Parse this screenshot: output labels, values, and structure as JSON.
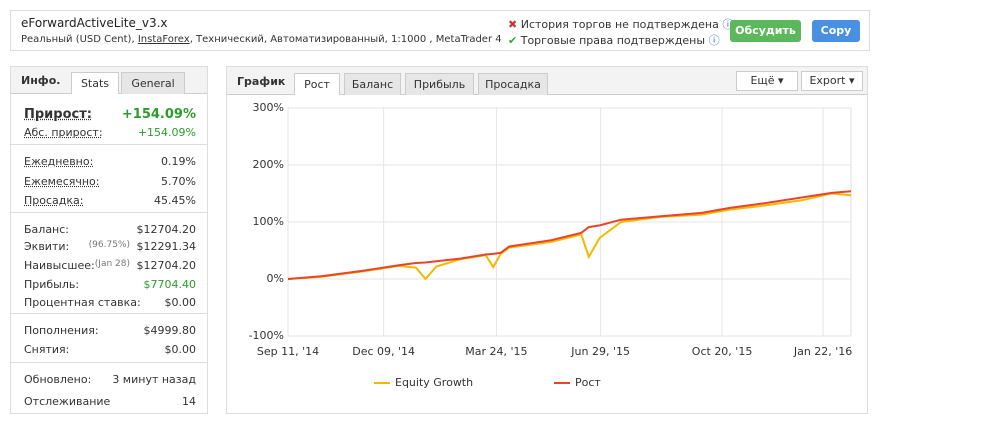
{
  "header": {
    "title": "eForwardActiveLite_v3.x",
    "account_type": "Реальный (USD Cent),",
    "broker": "InstaForex",
    "details": ", Технический, Автоматизированный, 1:1000 , MetaTrader 4"
  },
  "status": [
    "История торгов не подтверждена",
    "Торговые права подтверждены"
  ],
  "buttons": [
    "Обсудить",
    "Copy"
  ],
  "stats_panel": {
    "tabs": [
      "Инфо.",
      "Stats",
      "General"
    ],
    "groups": [
      [
        {
          "label": "Прирост:",
          "value": "+154.09%"
        },
        {
          "label": "Абс. прирост:",
          "value": "+154.09%"
        }
      ],
      [
        {
          "label": "Ежедневно:",
          "value": "0.19%"
        },
        {
          "label": "Ежемесячно:",
          "value": "5.70%"
        },
        {
          "label": "Просадка:",
          "value": "45.45%"
        }
      ],
      [
        {
          "label": "Баланс:",
          "value": "$12704.20"
        },
        {
          "label": "Эквити:",
          "note": "(96.75%)",
          "value": "$12291.34"
        },
        {
          "label": "Наивысшее:",
          "note": "(Jan 28)",
          "value": "$12704.20"
        },
        {
          "label": "Прибыль:",
          "value": "$7704.40"
        },
        {
          "label": "Процентная ставка:",
          "value": "$0.00"
        }
      ],
      [
        {
          "label": "Пополнения:",
          "value": "$4999.80"
        },
        {
          "label": "Снятия:",
          "value": "$0.00"
        }
      ],
      [
        {
          "label": "Обновлено:",
          "value": "3 минут назад"
        },
        {
          "label": "Отслеживание",
          "value": "14"
        }
      ]
    ]
  },
  "chart_panel": {
    "tabs": [
      "График",
      "Рост",
      "Баланс",
      "Прибыль",
      "Просадка"
    ],
    "buttons": [
      "Ещё",
      "Export"
    ]
  },
  "chart_data": {
    "type": "line",
    "x": [
      "2014-09-11",
      "2014-10-12",
      "2014-11-18",
      "2014-12-23",
      "2015-01-08",
      "2015-01-17",
      "2015-01-27",
      "2015-02-19",
      "2015-03-14",
      "2015-03-21",
      "2015-03-28",
      "2015-04-05",
      "2015-05-14",
      "2015-06-11",
      "2015-06-18",
      "2015-06-28",
      "2015-07-18",
      "2015-08-24",
      "2015-10-01",
      "2015-10-28",
      "2015-11-25",
      "2016-01-02",
      "2016-01-30",
      "2016-02-17"
    ],
    "series": [
      {
        "name": "Equity Growth",
        "color": "#f5b800",
        "values": [
          0,
          4,
          13,
          23,
          20,
          0,
          22,
          35,
          42,
          21,
          44,
          55,
          65,
          78,
          39,
          72,
          100,
          109,
          113,
          122,
          128,
          138,
          150,
          147
        ]
      },
      {
        "name": "Рост",
        "color": "#e8442c",
        "values": [
          0,
          5,
          14,
          24,
          28,
          29,
          31,
          36,
          43,
          44,
          46,
          57,
          68,
          81,
          91,
          94,
          104,
          110,
          116,
          125,
          132,
          143,
          151,
          154.09
        ]
      }
    ],
    "xlim": [
      "2014-09-11",
      "2016-02-17"
    ],
    "xticks": [
      {
        "value": "2014-09-11",
        "label": "Sep 11, '14"
      },
      {
        "value": "2014-12-09",
        "label": "Dec 09, '14"
      },
      {
        "value": "2015-03-24",
        "label": "Mar 24, '15"
      },
      {
        "value": "2015-06-29",
        "label": "Jun 29, '15"
      },
      {
        "value": "2015-10-20",
        "label": "Oct 20, '15"
      },
      {
        "value": "2016-01-22",
        "label": "Jan 22, '16"
      }
    ],
    "ylim": [
      -100,
      300
    ],
    "yticks": [
      {
        "value": -100,
        "label": "-100%"
      },
      {
        "value": 0,
        "label": "0%"
      },
      {
        "value": 100,
        "label": "100%"
      },
      {
        "value": 200,
        "label": "200%"
      },
      {
        "value": 300,
        "label": "300%"
      }
    ],
    "grid": true
  }
}
